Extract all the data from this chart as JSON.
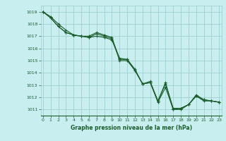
{
  "title": "Graphe pression niveau de la mer (hPa)",
  "bg_color": "#c8eef0",
  "grid_color": "#9ecfcf",
  "line_color": "#1a5c2a",
  "ylim": [
    1010.5,
    1019.5
  ],
  "xlim": [
    -0.3,
    23.3
  ],
  "yticks": [
    1011,
    1012,
    1013,
    1014,
    1015,
    1016,
    1017,
    1018,
    1019
  ],
  "xticks": [
    0,
    1,
    2,
    3,
    4,
    5,
    6,
    7,
    8,
    9,
    10,
    11,
    12,
    13,
    14,
    15,
    16,
    17,
    18,
    19,
    20,
    21,
    22,
    23
  ],
  "lines": [
    {
      "x": [
        0,
        1,
        2,
        3,
        4,
        5,
        6,
        7,
        8,
        9,
        10,
        11,
        12,
        13,
        14,
        15,
        16,
        17,
        18,
        19,
        20,
        21,
        22,
        23
      ],
      "y": [
        1019.0,
        1018.6,
        1018.0,
        1017.5,
        1017.1,
        1017.0,
        1017.0,
        1017.3,
        1017.1,
        1016.9,
        1015.0,
        1015.0,
        1014.2,
        1013.1,
        1013.2,
        1011.6,
        1012.8,
        1011.0,
        1011.0,
        1011.4,
        1012.1,
        1011.7,
        1011.7,
        1011.6
      ]
    },
    {
      "x": [
        0,
        1,
        2,
        3,
        4,
        5,
        6,
        7,
        8,
        9,
        10,
        11,
        12,
        13,
        14,
        15,
        16,
        17,
        18,
        19,
        20,
        21,
        22,
        23
      ],
      "y": [
        1019.0,
        1018.5,
        1017.8,
        1017.3,
        1017.1,
        1017.0,
        1016.9,
        1017.0,
        1016.9,
        1016.7,
        1015.1,
        1015.1,
        1014.3,
        1013.1,
        1013.2,
        1011.7,
        1013.1,
        1011.1,
        1011.1,
        1011.4,
        1012.2,
        1011.8,
        1011.7,
        1011.6
      ]
    },
    {
      "x": [
        0,
        1,
        2,
        3,
        4,
        5,
        6,
        7,
        8,
        9,
        10,
        11,
        12,
        13,
        14,
        15,
        16,
        17,
        18,
        19,
        20,
        21,
        22,
        23
      ],
      "y": [
        1019.0,
        1018.5,
        1017.8,
        1017.3,
        1017.1,
        1017.0,
        1016.9,
        1017.2,
        1017.0,
        1016.8,
        1015.2,
        1015.1,
        1014.2,
        1013.1,
        1013.3,
        1011.7,
        1013.2,
        1011.0,
        1011.1,
        1011.4,
        1012.1,
        1011.8,
        1011.7,
        1011.6
      ]
    }
  ],
  "title_fontsize": 5.5,
  "tick_fontsize": 4.5
}
